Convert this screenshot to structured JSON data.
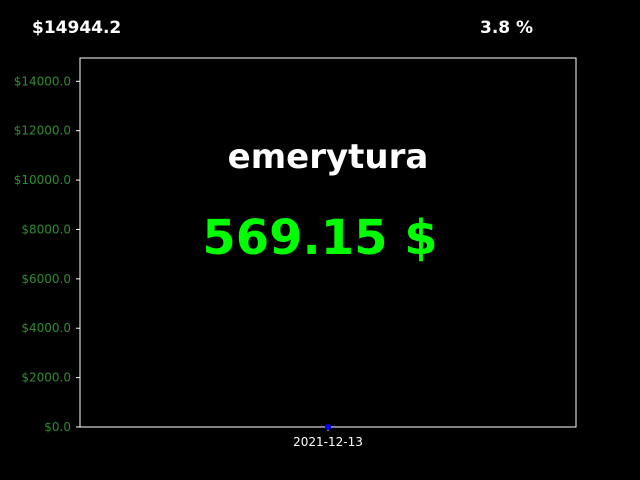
{
  "header": {
    "total": "$14944.2",
    "percent": "3.8 %"
  },
  "overlay": {
    "title": "emerytura",
    "amount": "569.15 $"
  },
  "colors": {
    "background": "#000000",
    "axes": "#ffffff",
    "y_tick_labels": "#2e8b2e",
    "amount_text": "#00ff00",
    "series_point": "#0000ff"
  },
  "chart_data": {
    "type": "scatter",
    "title": "",
    "xlabel": "",
    "ylabel": "",
    "x": [
      "2021-12-13"
    ],
    "series": [
      {
        "values": [
          0
        ]
      }
    ],
    "ylim": [
      0,
      14944.2
    ],
    "yticks": [
      0,
      2000,
      4000,
      6000,
      8000,
      10000,
      12000,
      14000
    ],
    "ytick_labels": [
      "$0.0",
      "$2000.0",
      "$4000.0",
      "$6000.0",
      "$8000.0",
      "$10000.0",
      "$12000.0",
      "$14000.0"
    ],
    "xtick_labels": [
      "2021-12-13"
    ],
    "grid": false,
    "legend": "none"
  }
}
